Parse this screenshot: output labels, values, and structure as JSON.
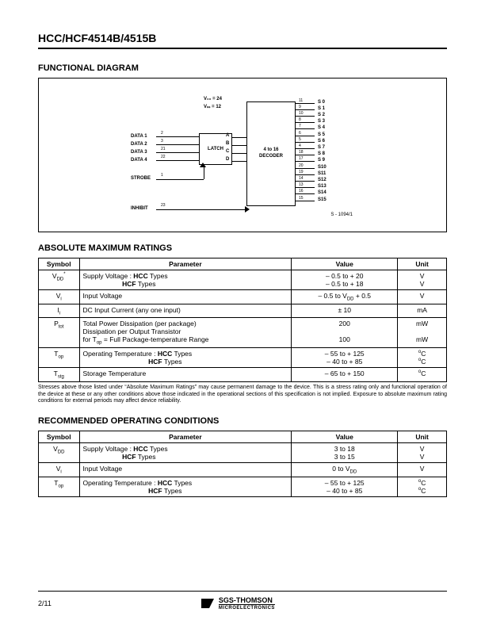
{
  "header": {
    "part_number": "HCC/HCF4514B/4515B"
  },
  "functional_diagram": {
    "title": "FUNCTIONAL DIAGRAM",
    "latch_label": "LATCH",
    "decoder_label": "4 to 16\nDECODER",
    "vdd_label": "V₀₀ = 24",
    "vss_label": "Vₛₛ = 12",
    "inputs": [
      {
        "label": "DATA 1",
        "pin": "2",
        "port": "A"
      },
      {
        "label": "DATA 2",
        "pin": "3",
        "port": "B"
      },
      {
        "label": "DATA 3",
        "pin": "21",
        "port": "C"
      },
      {
        "label": "DATA 4",
        "pin": "22",
        "port": "D"
      }
    ],
    "strobe": {
      "label": "STROBE",
      "pin": "1"
    },
    "inhibit": {
      "label": "INHIBIT",
      "pin": "23"
    },
    "outputs": [
      {
        "pin": "11",
        "label": "S 0"
      },
      {
        "pin": "9",
        "label": "S 1"
      },
      {
        "pin": "10",
        "label": "S 2"
      },
      {
        "pin": "8",
        "label": "S 3"
      },
      {
        "pin": "7",
        "label": "S 4"
      },
      {
        "pin": "6",
        "label": "S 5"
      },
      {
        "pin": "5",
        "label": "S 6"
      },
      {
        "pin": "4",
        "label": "S 7"
      },
      {
        "pin": "18",
        "label": "S 8"
      },
      {
        "pin": "17",
        "label": "S 9"
      },
      {
        "pin": "20",
        "label": "S10"
      },
      {
        "pin": "19",
        "label": "S11"
      },
      {
        "pin": "14",
        "label": "S12"
      },
      {
        "pin": "13",
        "label": "S13"
      },
      {
        "pin": "16",
        "label": "S14"
      },
      {
        "pin": "15",
        "label": "S15"
      }
    ],
    "footnote": "S - 1094/1"
  },
  "abs_max": {
    "title": "ABSOLUTE MAXIMUM RATINGS",
    "headers": {
      "symbol": "Symbol",
      "parameter": "Parameter",
      "value": "Value",
      "unit": "Unit"
    },
    "rows": [
      {
        "symbol": "V_DD*",
        "parameter": "Supply Voltage : HCC Types\n                     HCF Types",
        "value": "– 0.5 to + 20\n– 0.5 to + 18",
        "unit": "V\nV"
      },
      {
        "symbol": "V_i",
        "parameter": "Input Voltage",
        "value": "– 0.5 to V_DD + 0.5",
        "unit": "V"
      },
      {
        "symbol": "I_i",
        "parameter": "DC Input Current (any one input)",
        "value": "± 10",
        "unit": "mA"
      },
      {
        "symbol": "P_tot",
        "parameter": "Total Power Dissipation (per package)\nDissipation per Output Transistor\nfor T_op = Full Package-temperature Range",
        "value": "200\n\n100",
        "unit": "mW\n\nmW"
      },
      {
        "symbol": "T_op",
        "parameter": "Operating Temperature : HCC Types\n                                   HCF Types",
        "value": "– 55 to + 125\n– 40 to + 85",
        "unit": "°C\n°C"
      },
      {
        "symbol": "T_stg",
        "parameter": "Storage Temperature",
        "value": "– 65 to + 150",
        "unit": "°C"
      }
    ],
    "note": "Stresses above those listed under “Absolute Maximum Ratings” may cause permanent damage to the device. This is a stress rating only and functional operation of the device at these or any other conditions above those indicated in the operational sections of this specification is not implied. Exposure to absolute maximum rating conditions for external periods may affect device reliability."
  },
  "rec_op": {
    "title": "RECOMMENDED OPERATING CONDITIONS",
    "headers": {
      "symbol": "Symbol",
      "parameter": "Parameter",
      "value": "Value",
      "unit": "Unit"
    },
    "rows": [
      {
        "symbol": "V_DD",
        "parameter": "Supply Voltage : HCC Types\n                     HCF Types",
        "value": "3 to 18\n3 to 15",
        "unit": "V\nV"
      },
      {
        "symbol": "V_i",
        "parameter": "Input Voltage",
        "value": "0 to V_DD",
        "unit": "V"
      },
      {
        "symbol": "T_op",
        "parameter": "Operating Temperature : HCC Types\n                                   HCF Types",
        "value": "– 55 to + 125\n– 40 to + 85",
        "unit": "°C\n°C"
      }
    ]
  },
  "footer": {
    "page": "2/11",
    "brand1": "SGS-THOMSON",
    "brand2": "MICROELECTRONICS"
  }
}
